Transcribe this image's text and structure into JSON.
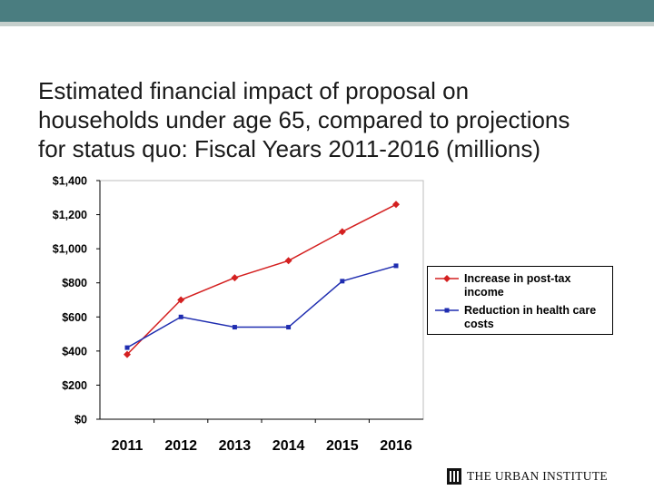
{
  "slide": {
    "title_lines": [
      "Estimated financial impact of proposal on",
      "households under age 65, compared to projections",
      "for status quo: Fiscal Years 2011-2016 (millions)"
    ]
  },
  "chart_data": {
    "type": "line",
    "categories": [
      "2011",
      "2012",
      "2013",
      "2014",
      "2015",
      "2016"
    ],
    "series": [
      {
        "name": "Increase in post-tax income",
        "values": [
          380,
          700,
          830,
          930,
          1100,
          1260
        ],
        "color": "#d42020",
        "marker": "diamond"
      },
      {
        "name": "Reduction in health care costs",
        "values": [
          420,
          600,
          540,
          540,
          810,
          900
        ],
        "color": "#1f2db0",
        "marker": "square"
      }
    ],
    "ylim": [
      0,
      1400
    ],
    "yticks": [
      0,
      200,
      400,
      600,
      800,
      1000,
      1200,
      1400
    ],
    "ytick_labels": [
      "$0",
      "$200",
      "$400",
      "$600",
      "$800",
      "$1,000",
      "$1,200",
      "$1,400"
    ],
    "legend_position": "right",
    "grid": false
  },
  "legend": {
    "items": [
      {
        "line1": "Increase in post-tax",
        "line2": "income"
      },
      {
        "line1": "Reduction in health care",
        "line2": "costs"
      }
    ]
  },
  "footer": {
    "logo_text": "THE URBAN INSTITUTE"
  },
  "colors": {
    "header_bar": "#4a7d80",
    "header_line": "#c5cfcc"
  }
}
